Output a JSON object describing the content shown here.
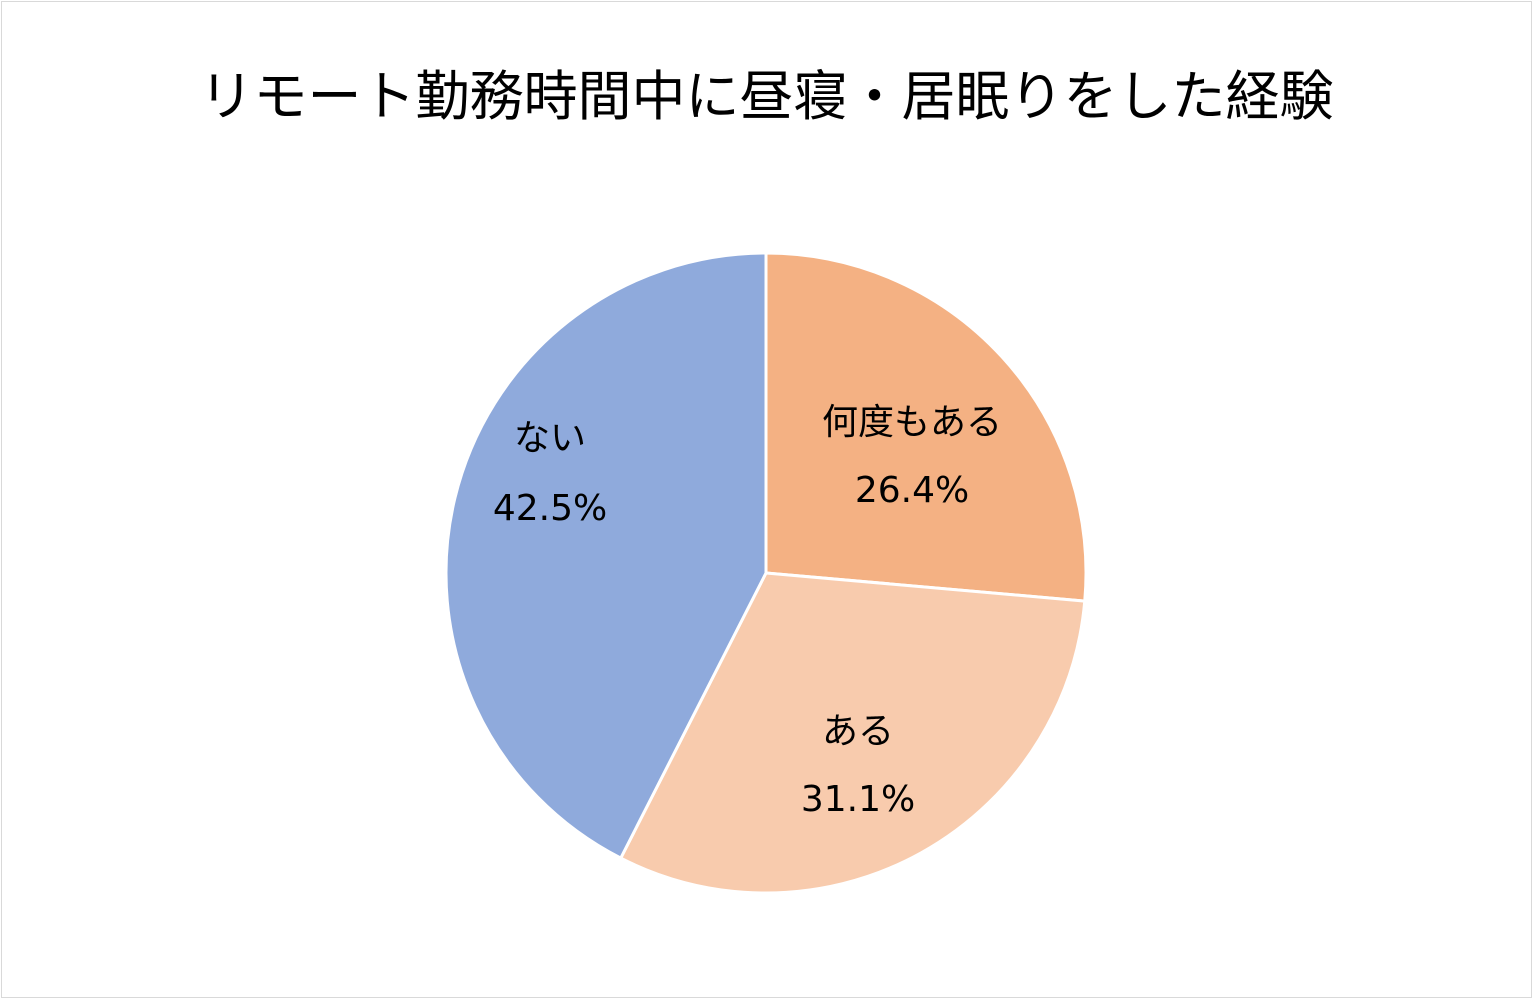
{
  "chart_data": {
    "type": "pie",
    "title": "リモート勤務時間中に昼寝・居眠りをした経験",
    "start": "top",
    "direction": "clockwise",
    "slices": [
      {
        "label": "何度もある",
        "value": 26.4,
        "value_label": "26.4%",
        "color": "#F4B183"
      },
      {
        "label": "ある",
        "value": 31.1,
        "value_label": "31.1%",
        "color": "#F8CBAD"
      },
      {
        "label": "ない",
        "value": 42.5,
        "value_label": "42.5%",
        "color": "#8FAADC"
      }
    ],
    "legend": "none"
  }
}
